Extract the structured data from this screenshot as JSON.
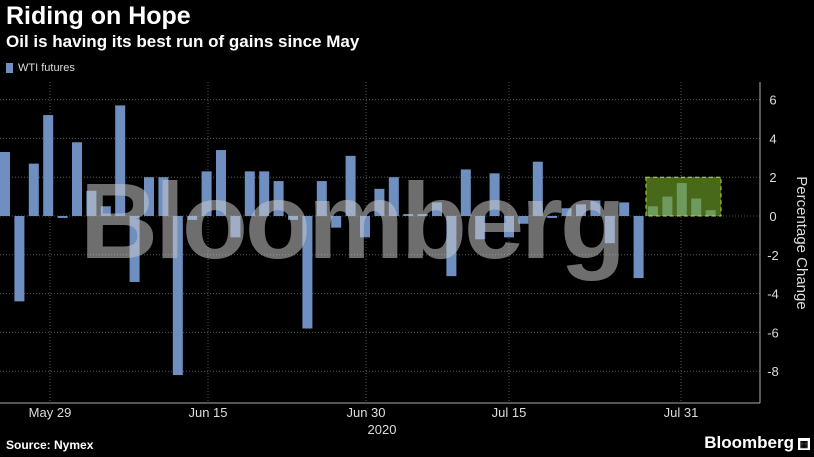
{
  "title": "Riding on Hope",
  "subtitle": "Oil is having its best run of gains since May",
  "legend": {
    "label": "WTI futures",
    "color": "#6f8fc0"
  },
  "source": "Source: Nymex",
  "brand": "Bloomberg",
  "watermark": "Bloomberg",
  "chart_data": {
    "type": "bar",
    "ylabel": "Percentage Change",
    "ylim": [
      -9,
      7
    ],
    "yticks": [
      6,
      4,
      2,
      0,
      -2,
      -4,
      -6,
      -8
    ],
    "xtick_labels": [
      "May 29",
      "Jun 15",
      "Jun 30",
      "Jul 15",
      "Jul 31"
    ],
    "xtick_year": "2020",
    "series": [
      {
        "name": "WTI futures",
        "color": "#6f8fc0",
        "values": [
          3.3,
          -4.4,
          2.7,
          5.2,
          -0.1,
          3.8,
          1.3,
          0.5,
          5.7,
          -3.4,
          2.0,
          2.0,
          -8.2,
          -0.2,
          2.3,
          3.4,
          -1.1,
          2.3,
          2.3,
          1.8,
          -0.2,
          -5.8,
          1.8,
          -0.6,
          3.1,
          -1.1,
          1.4,
          2.0,
          0.1,
          0.1,
          0.7,
          -3.1,
          2.4,
          -1.2,
          2.2,
          -1.1,
          -0.4,
          2.8,
          -0.1,
          0.4,
          0.6,
          0.8,
          -1.4,
          0.7,
          -3.2,
          0.5,
          1.0,
          1.7,
          0.9,
          0.3
        ]
      }
    ],
    "highlight": {
      "from_index": 45,
      "to_index": 49,
      "y_range": [
        0,
        2
      ]
    },
    "grid": true
  }
}
